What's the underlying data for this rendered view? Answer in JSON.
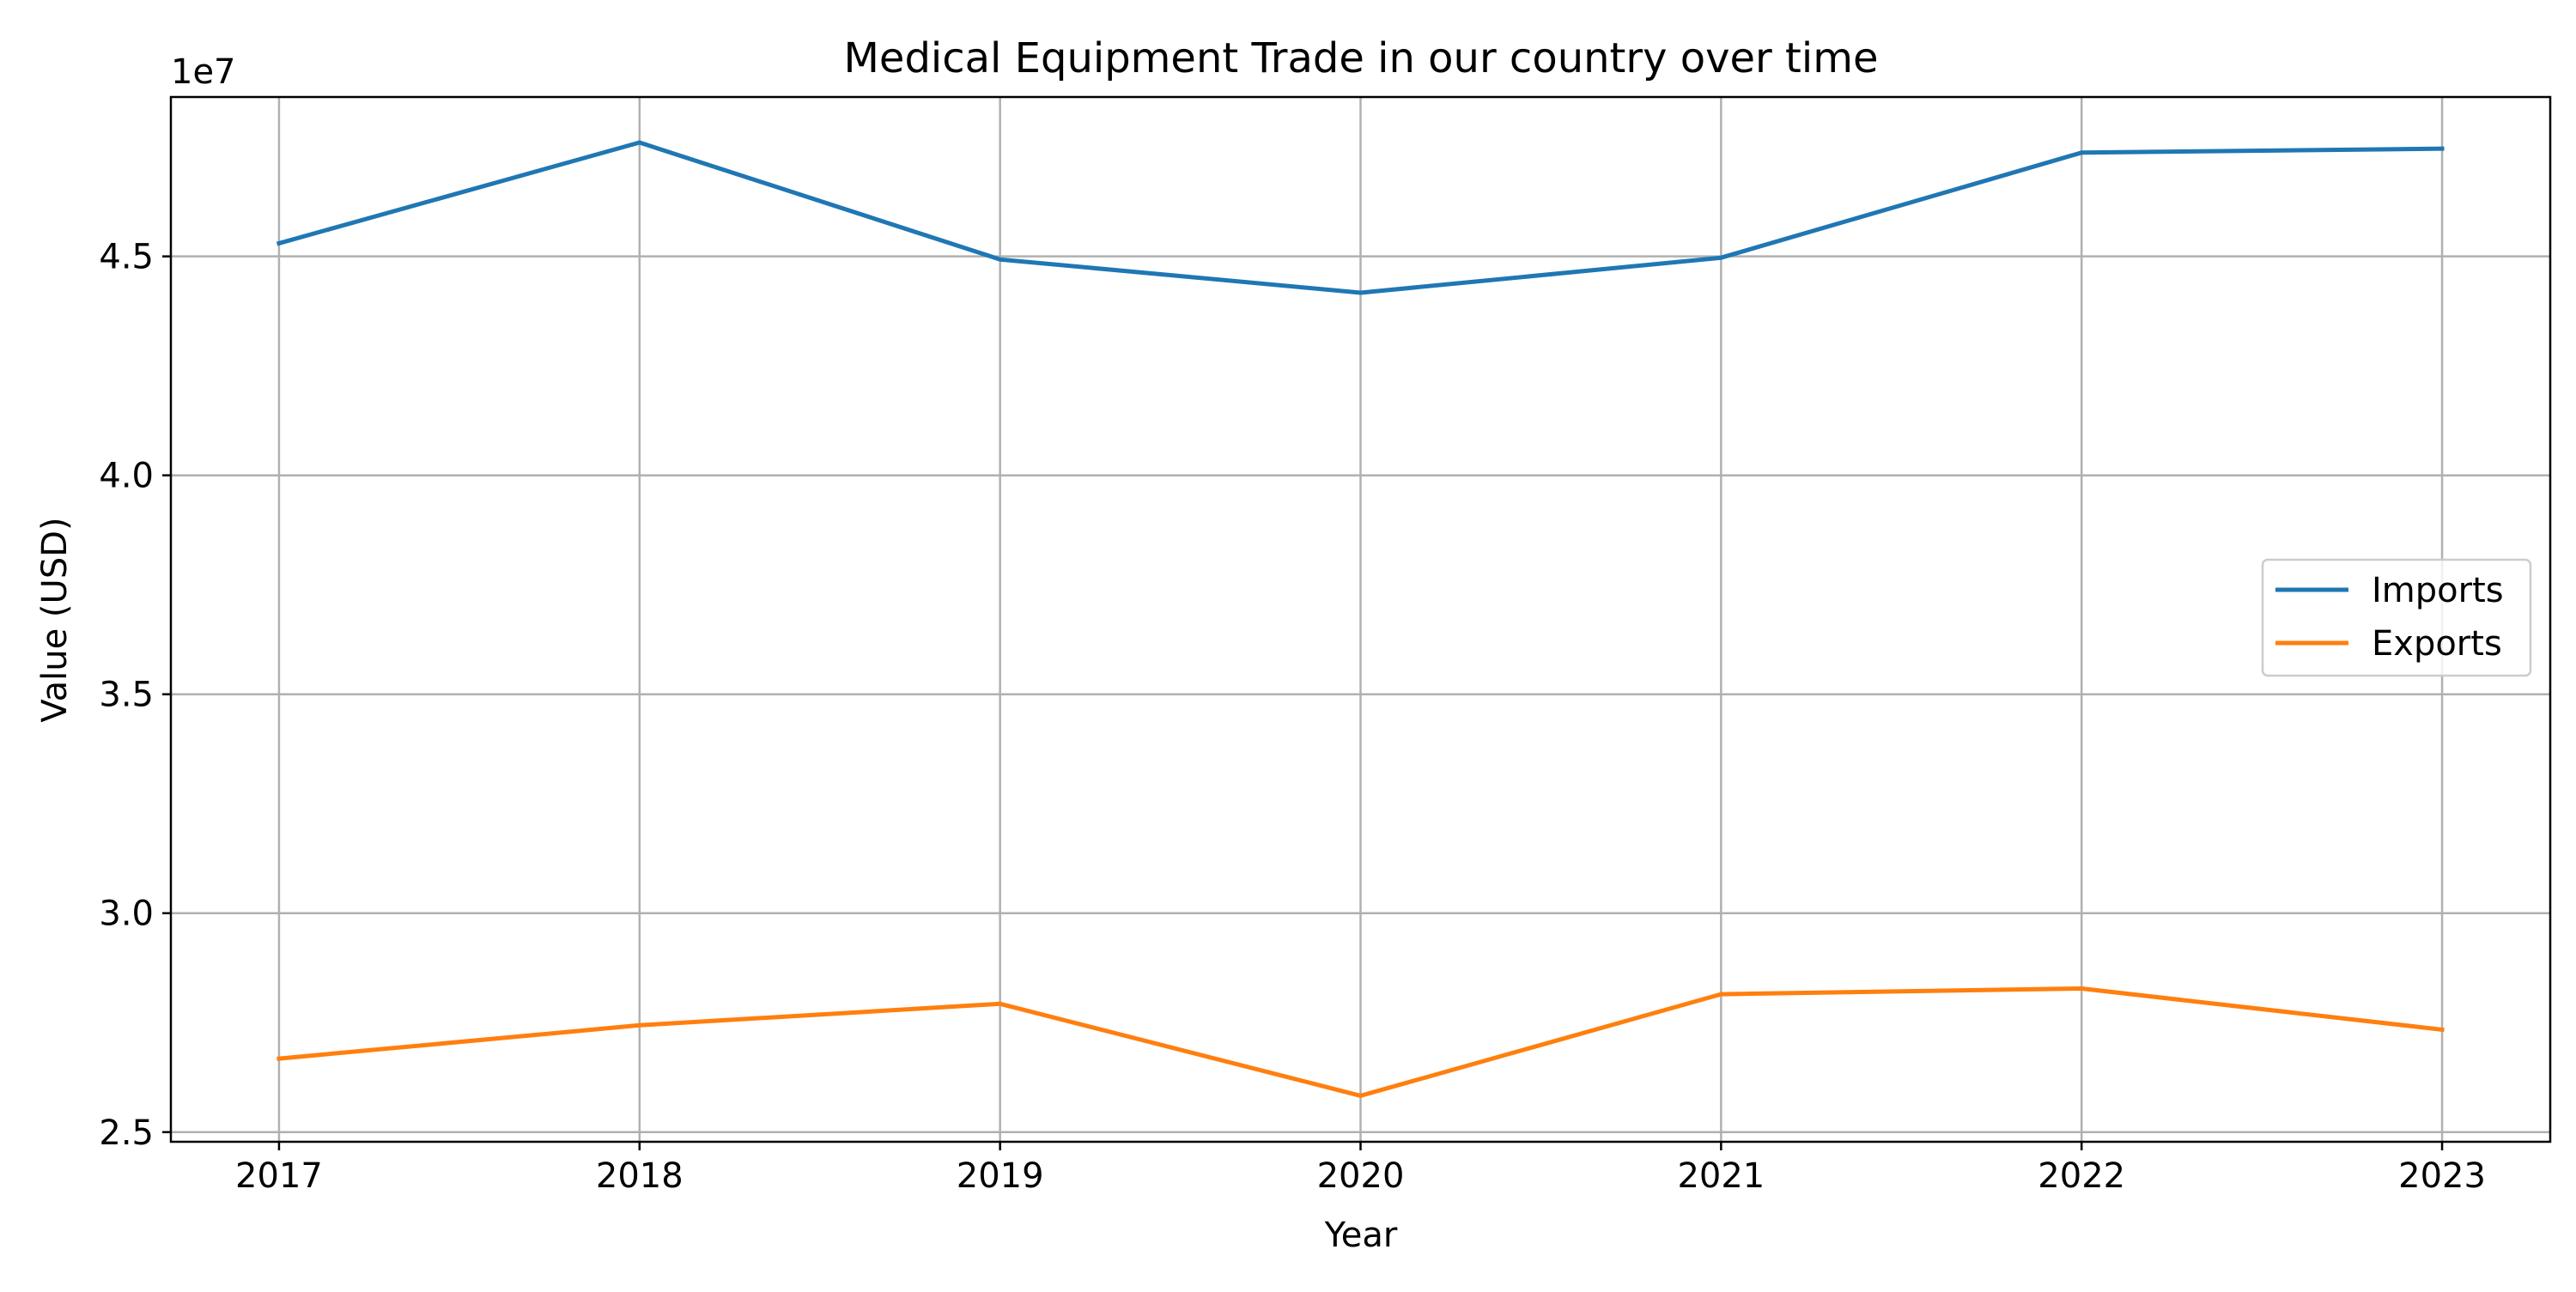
{
  "chart_data": {
    "type": "line",
    "title": "Medical Equipment Trade in our country over time",
    "xlabel": "Year",
    "ylabel": "Value (USD)",
    "y_offset_label": "1e7",
    "x": [
      2017,
      2018,
      2019,
      2020,
      2021,
      2022,
      2023
    ],
    "x_tick_labels": [
      "2017",
      "2018",
      "2019",
      "2020",
      "2021",
      "2022",
      "2023"
    ],
    "y_tick_labels": [
      "2.5",
      "3.0",
      "3.5",
      "4.0",
      "4.5"
    ],
    "y_ticks": [
      25000000,
      30000000,
      35000000,
      40000000,
      45000000
    ],
    "xlim": [
      2016.7,
      2023.3
    ],
    "ylim": [
      24780000,
      48640000
    ],
    "grid": true,
    "legend_position": "center-right",
    "series": [
      {
        "name": "Imports",
        "color": "#1f77b4",
        "values": [
          45300000,
          47600000,
          44930000,
          44170000,
          44970000,
          47370000,
          47460000
        ]
      },
      {
        "name": "Exports",
        "color": "#ff7f0e",
        "values": [
          26680000,
          27440000,
          27930000,
          25830000,
          28150000,
          28280000,
          27340000
        ]
      }
    ]
  }
}
